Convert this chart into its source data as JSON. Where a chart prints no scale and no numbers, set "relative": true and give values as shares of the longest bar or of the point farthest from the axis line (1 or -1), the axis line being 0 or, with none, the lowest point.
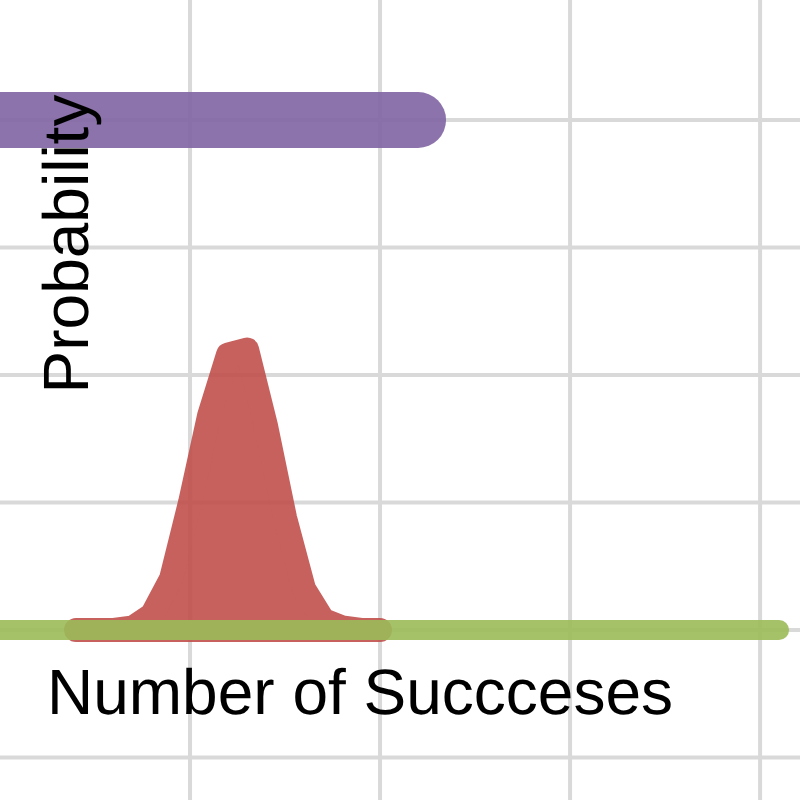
{
  "chart_data": {
    "type": "line",
    "relative": true,
    "xlabel": "Number of Succceses",
    "ylabel": "Probability",
    "grid": true,
    "marker": "none",
    "categories": [
      null,
      null,
      null,
      null,
      null,
      null,
      null,
      null,
      null,
      null,
      null,
      null,
      null,
      null,
      null,
      null,
      null,
      null,
      null,
      null,
      null,
      null,
      null,
      null,
      null,
      null,
      null,
      null,
      null,
      null,
      null,
      null,
      null,
      null,
      null,
      null,
      null,
      null,
      null,
      null,
      null,
      null
    ],
    "series": [
      {
        "color": "#9bbb59",
        "values": [
          0,
          0,
          0,
          0,
          0,
          0,
          0,
          0,
          0,
          0,
          0,
          0,
          0,
          0,
          0,
          0,
          0,
          0,
          0,
          0,
          0,
          0,
          0,
          0,
          0,
          0,
          0,
          0,
          0,
          0,
          0,
          0,
          0,
          0,
          0,
          0,
          0,
          0,
          0,
          0,
          0,
          0
        ]
      },
      {
        "type": "area",
        "color": "#c0504d",
        "values": [
          null,
          null,
          null,
          null,
          0,
          0,
          0,
          0.005,
          0.03,
          0.1,
          0.25,
          0.42,
          0.54,
          0.55,
          0.4,
          0.22,
          0.08,
          0.02,
          0.005,
          0,
          0,
          null,
          null,
          null,
          null,
          null,
          null,
          null,
          null,
          null,
          null,
          null,
          null,
          null,
          null,
          null,
          null,
          null,
          null,
          null,
          null,
          null
        ]
      },
      {
        "color": "#8064a2",
        "values": [
          1,
          1,
          1,
          1,
          1,
          1,
          1,
          1,
          1,
          1,
          1,
          1,
          1,
          1,
          1,
          1,
          1,
          1,
          1,
          1,
          1,
          1,
          1,
          null,
          null,
          null,
          null,
          null,
          null,
          null,
          null,
          null,
          null,
          null,
          null,
          null,
          null,
          null,
          null,
          null,
          null,
          null
        ]
      }
    ]
  }
}
